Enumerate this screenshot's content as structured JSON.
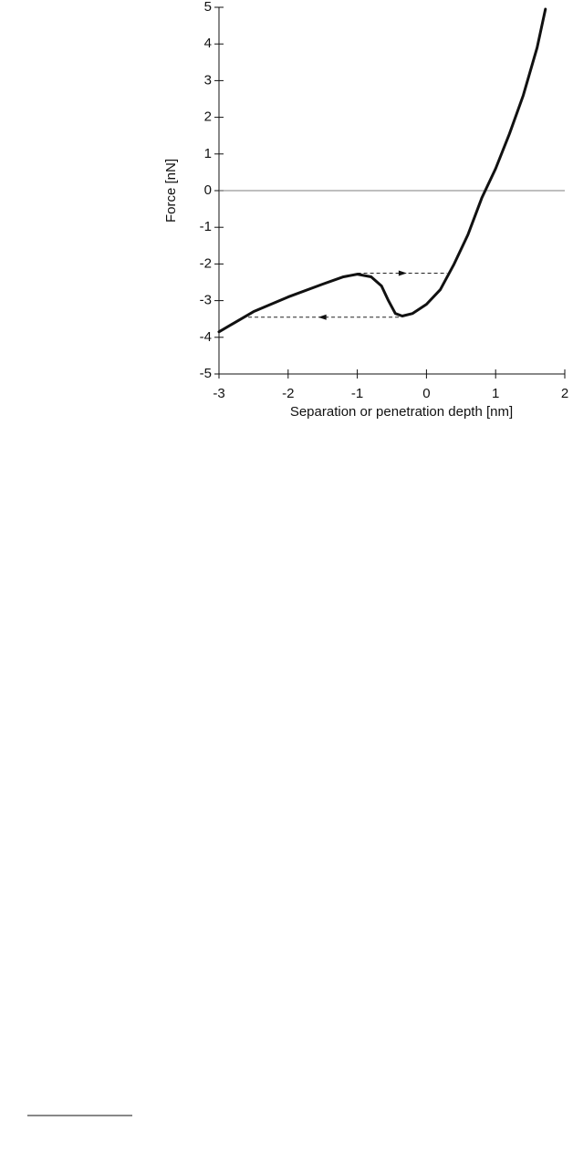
{
  "chart_data": {
    "type": "line",
    "xlabel": "Separation or penetration depth [nm]",
    "ylabel": "Force [nN]",
    "xlim": [
      -3,
      2
    ],
    "xticks": [
      -3,
      -2,
      -1,
      0,
      1,
      2
    ],
    "ylim": [
      -5,
      5
    ],
    "yticks": [
      -5,
      -4,
      -3,
      -2,
      -1,
      0,
      1,
      2,
      3,
      4,
      5
    ],
    "hline": 0,
    "series": [
      {
        "color": "#111111",
        "x": [
          -3,
          -2.5,
          -2,
          -1.5,
          -1.2,
          -1,
          -0.8,
          -0.65,
          -0.55,
          -0.45,
          -0.35,
          -0.2,
          0,
          0.2,
          0.4,
          0.6,
          0.8,
          1,
          1.2,
          1.4,
          1.6,
          1.72
        ],
        "values": [
          -3.85,
          -3.3,
          -2.9,
          -2.55,
          -2.35,
          -2.28,
          -2.35,
          -2.6,
          -3.0,
          -3.35,
          -3.42,
          -3.35,
          -3.1,
          -2.7,
          -2.0,
          -1.2,
          -0.2,
          0.6,
          1.55,
          2.6,
          3.9,
          4.95
        ]
      }
    ],
    "jumps": [
      {
        "x": [
          -1,
          0.3
        ],
        "y": [
          -2.25,
          -2.25
        ]
      },
      {
        "x": [
          -0.4,
          -2.6
        ],
        "y": [
          -3.45,
          -3.45
        ]
      }
    ]
  }
}
